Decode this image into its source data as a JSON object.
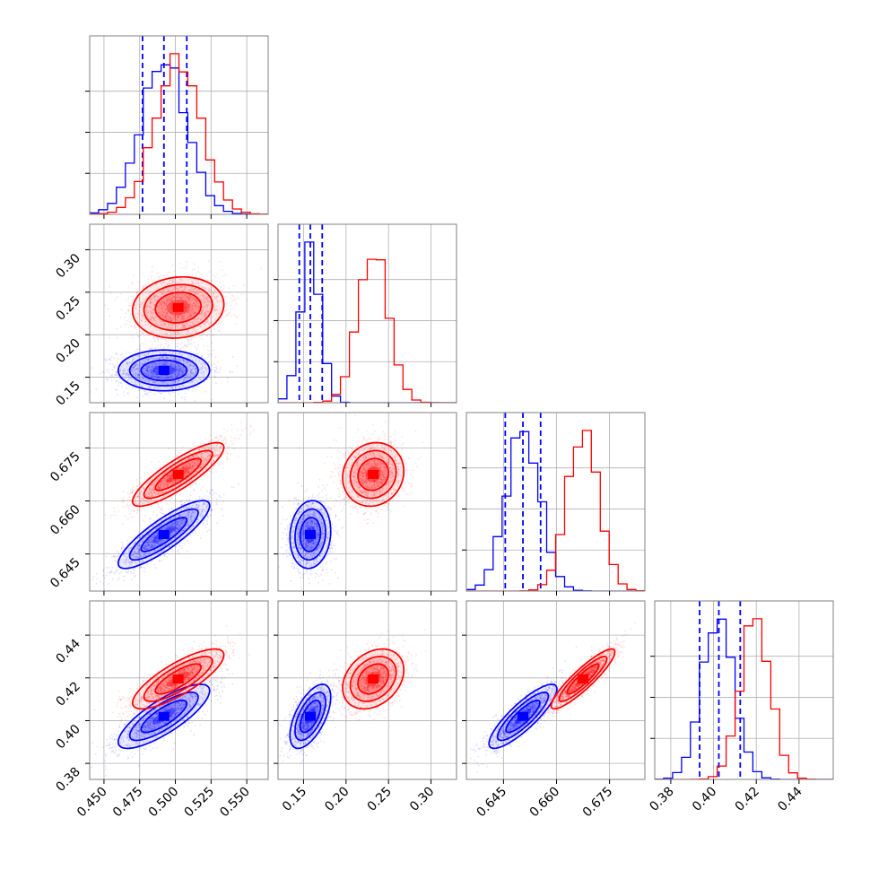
{
  "chart_data": {
    "type": "corner",
    "title": "",
    "grid": true,
    "colors": {
      "blue": "#0000ff",
      "red": "#ff0000",
      "grid": "#b0b0b0",
      "frame": "#808080"
    },
    "params": [
      {
        "lim": [
          0.44,
          0.565
        ],
        "ticks": [
          0.45,
          0.475,
          0.5,
          0.525,
          0.55
        ],
        "tick_labels": [
          "0.450",
          "0.475",
          "0.500",
          "0.525",
          "0.550"
        ]
      },
      {
        "lim": [
          0.12,
          0.33
        ],
        "ticks": [
          0.15,
          0.2,
          0.25,
          0.3
        ],
        "tick_labels": [
          "0.15",
          "0.20",
          "0.25",
          "0.30"
        ]
      },
      {
        "lim": [
          0.6345,
          0.685
        ],
        "ticks": [
          0.645,
          0.66,
          0.675
        ],
        "tick_labels": [
          "0.645",
          "0.660",
          "0.675"
        ]
      },
      {
        "lim": [
          0.3725,
          0.456
        ],
        "ticks": [
          0.38,
          0.4,
          0.42,
          0.44
        ],
        "tick_labels": [
          "0.38",
          "0.40",
          "0.42",
          "0.44"
        ]
      }
    ],
    "series": [
      {
        "color": "blue",
        "mean": [
          0.492,
          0.158,
          0.6505,
          0.402
        ],
        "std": [
          0.016,
          0.012,
          0.0048,
          0.0075
        ],
        "corr": [
          [
            1,
            0.0,
            0.85,
            0.8
          ],
          [
            0.0,
            1,
            0.1,
            0.6
          ],
          [
            0.85,
            0.1,
            1,
            0.85
          ],
          [
            0.8,
            0.6,
            0.85,
            1
          ]
        ],
        "quantiles": [
          [
            0.477,
            0.492,
            0.508
          ],
          [
            0.145,
            0.158,
            0.172
          ],
          [
            0.6455,
            0.6505,
            0.6555
          ],
          [
            0.3935,
            0.4025,
            0.4125
          ]
        ]
      },
      {
        "color": "red",
        "mean": [
          0.502,
          0.232,
          0.6675,
          0.4195
        ],
        "std": [
          0.016,
          0.018,
          0.0045,
          0.007
        ],
        "corr": [
          [
            1,
            0.1,
            0.85,
            0.8
          ],
          [
            0.1,
            1,
            0.1,
            0.3
          ],
          [
            0.85,
            0.1,
            1,
            0.9
          ],
          [
            0.8,
            0.3,
            0.9,
            1
          ]
        ]
      }
    ]
  }
}
